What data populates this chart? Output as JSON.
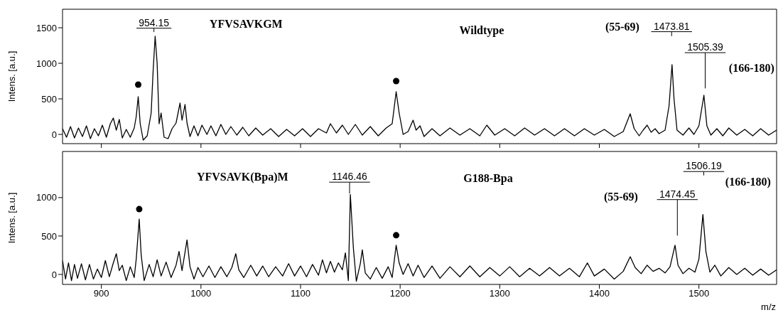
{
  "chart_data": [
    {
      "type": "line",
      "ylabel": "Intens. [a.u.]",
      "xlim": [
        861,
        1578
      ],
      "ylim": [
        -130,
        1760
      ],
      "xticks": [
        900,
        1000,
        1100,
        1200,
        1300,
        1400,
        1500
      ],
      "yticks": [
        0,
        500,
        1000,
        1500
      ],
      "tick_labels": "y",
      "grid": false,
      "legend": false,
      "series": [
        {
          "color": "#000000",
          "marker": "none",
          "x": [
            861,
            865,
            869,
            873,
            877,
            881,
            885,
            889,
            893,
            897,
            901,
            905,
            909,
            912,
            915,
            918,
            921,
            925,
            929,
            933,
            935,
            937,
            939,
            942,
            946,
            950,
            952,
            954,
            956,
            958,
            960,
            963,
            967,
            971,
            975,
            979,
            981,
            984,
            986,
            989,
            993,
            997,
            1001,
            1006,
            1010,
            1015,
            1020,
            1025,
            1030,
            1036,
            1042,
            1048,
            1055,
            1062,
            1070,
            1078,
            1086,
            1094,
            1102,
            1110,
            1118,
            1126,
            1130,
            1136,
            1142,
            1148,
            1155,
            1162,
            1170,
            1178,
            1186,
            1192,
            1196,
            1199,
            1203,
            1208,
            1213,
            1216,
            1220,
            1224,
            1232,
            1240,
            1250,
            1260,
            1270,
            1280,
            1287,
            1295,
            1305,
            1315,
            1325,
            1335,
            1345,
            1355,
            1365,
            1375,
            1385,
            1395,
            1405,
            1415,
            1424,
            1431,
            1435,
            1440,
            1444,
            1448,
            1452,
            1456,
            1460,
            1466,
            1470,
            1473,
            1475,
            1478,
            1484,
            1490,
            1495,
            1500,
            1505,
            1508,
            1512,
            1518,
            1524,
            1530,
            1538,
            1546,
            1554,
            1562,
            1570,
            1578
          ],
          "values": [
            80,
            -40,
            110,
            -50,
            90,
            -30,
            120,
            -60,
            80,
            -20,
            130,
            -40,
            150,
            230,
            60,
            210,
            -50,
            70,
            -40,
            90,
            250,
            530,
            150,
            -80,
            -20,
            300,
            900,
            1380,
            1000,
            150,
            300,
            -40,
            -60,
            80,
            160,
            440,
            200,
            420,
            160,
            -30,
            120,
            -20,
            130,
            0,
            120,
            -20,
            140,
            0,
            110,
            -10,
            100,
            -20,
            90,
            -10,
            80,
            -30,
            70,
            -20,
            80,
            -30,
            80,
            20,
            150,
            20,
            130,
            0,
            140,
            -10,
            110,
            -20,
            90,
            150,
            600,
            300,
            0,
            40,
            200,
            60,
            120,
            -30,
            80,
            -20,
            90,
            -10,
            80,
            -20,
            130,
            -10,
            80,
            -20,
            90,
            -10,
            80,
            -20,
            80,
            -20,
            80,
            -10,
            70,
            -30,
            40,
            290,
            80,
            -20,
            60,
            130,
            30,
            80,
            10,
            60,
            400,
            980,
            500,
            60,
            -10,
            90,
            0,
            120,
            550,
            120,
            -10,
            80,
            -20,
            90,
            -10,
            70,
            -20,
            80,
            -10,
            60
          ]
        },
        {
          "type": "scatter",
          "color": "#000000",
          "marker": "circle",
          "x": [
            937,
            1196
          ],
          "values": [
            700,
            750
          ]
        }
      ],
      "annotations": [
        "954.15",
        "YFVSAVKGM",
        "Wildtype",
        "(55-69)",
        "1473.81",
        "1505.39",
        "(166-180)"
      ]
    },
    {
      "type": "line",
      "xlabel": "m/z",
      "ylabel": "Intens. [a.u.]",
      "xlim": [
        861,
        1578
      ],
      "ylim": [
        -130,
        1600
      ],
      "xticks": [
        900,
        1000,
        1100,
        1200,
        1300,
        1400,
        1500
      ],
      "yticks": [
        0,
        500,
        1000
      ],
      "grid": false,
      "legend": false,
      "series": [
        {
          "color": "#000000",
          "marker": "none",
          "x": [
            861,
            864,
            867,
            870,
            873,
            876,
            880,
            884,
            888,
            892,
            896,
            900,
            904,
            908,
            912,
            915,
            918,
            921,
            925,
            929,
            933,
            935,
            938,
            940,
            943,
            948,
            952,
            956,
            960,
            965,
            970,
            975,
            978,
            981,
            986,
            989,
            993,
            997,
            1002,
            1008,
            1014,
            1020,
            1026,
            1031,
            1035,
            1038,
            1043,
            1050,
            1056,
            1062,
            1068,
            1075,
            1082,
            1088,
            1094,
            1100,
            1106,
            1112,
            1118,
            1122,
            1126,
            1130,
            1134,
            1138,
            1142,
            1145,
            1148,
            1150,
            1153,
            1156,
            1160,
            1162,
            1165,
            1170,
            1176,
            1182,
            1188,
            1192,
            1196,
            1199,
            1203,
            1208,
            1213,
            1218,
            1224,
            1232,
            1240,
            1250,
            1260,
            1270,
            1280,
            1290,
            1300,
            1310,
            1320,
            1330,
            1340,
            1350,
            1360,
            1370,
            1380,
            1388,
            1395,
            1405,
            1415,
            1424,
            1431,
            1436,
            1442,
            1448,
            1454,
            1460,
            1466,
            1471,
            1476,
            1479,
            1484,
            1490,
            1496,
            1500,
            1504,
            1507,
            1511,
            1516,
            1522,
            1530,
            1538,
            1546,
            1554,
            1562,
            1570,
            1578
          ],
          "values": [
            180,
            -60,
            150,
            -80,
            130,
            -50,
            140,
            -70,
            130,
            -60,
            70,
            -40,
            180,
            -30,
            150,
            270,
            50,
            120,
            -80,
            100,
            -40,
            200,
            720,
            250,
            -80,
            130,
            -30,
            190,
            -20,
            160,
            -40,
            120,
            300,
            50,
            450,
            100,
            -60,
            90,
            -30,
            110,
            -40,
            100,
            -30,
            90,
            270,
            60,
            -40,
            120,
            -20,
            110,
            -30,
            100,
            -20,
            140,
            -20,
            110,
            -30,
            130,
            -10,
            190,
            20,
            170,
            30,
            150,
            60,
            280,
            -80,
            1040,
            350,
            -90,
            140,
            320,
            20,
            -60,
            90,
            -50,
            100,
            -40,
            380,
            150,
            0,
            140,
            -20,
            120,
            -40,
            110,
            -50,
            100,
            -30,
            110,
            -30,
            90,
            -20,
            100,
            -30,
            80,
            -20,
            90,
            -20,
            80,
            -30,
            150,
            -20,
            70,
            -60,
            40,
            230,
            90,
            10,
            120,
            40,
            80,
            20,
            100,
            380,
            120,
            10,
            80,
            30,
            200,
            780,
            300,
            30,
            120,
            -20,
            90,
            0,
            80,
            -10,
            70,
            -10,
            60
          ]
        },
        {
          "type": "scatter",
          "color": "#000000",
          "marker": "circle",
          "x": [
            938,
            1196
          ],
          "values": [
            850,
            510
          ]
        }
      ],
      "annotations": [
        "YFVSAVK(Bpa)M",
        "1146.46",
        "G188-Bpa",
        "1506.19",
        "(166-180)",
        "(55-69)",
        "1474.45"
      ]
    }
  ]
}
